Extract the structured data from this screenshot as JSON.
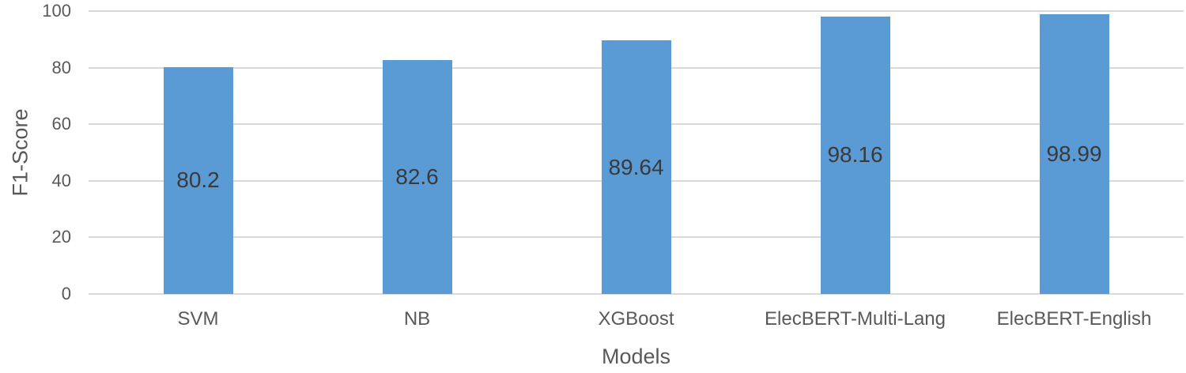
{
  "chart_data": {
    "type": "bar",
    "title": "",
    "categories": [
      "SVM",
      "NB",
      "XGBoost",
      "ElecBERT-Multi-Lang",
      "ElecBERT-English"
    ],
    "values": [
      80.2,
      82.6,
      89.64,
      98.16,
      98.99
    ],
    "value_labels": [
      "80.2",
      "82.6",
      "89.64",
      "98.16",
      "98.99"
    ],
    "xlabel": "Models",
    "ylabel": "F1-Score",
    "ylim": [
      0,
      100
    ],
    "yticks": [
      0,
      20,
      40,
      60,
      80,
      100
    ],
    "grid": "horizontal",
    "legend": "none",
    "bar_color": "#5B9BD5",
    "data_label_color": "#3a3a3a",
    "axis_text_color": "#595959",
    "gridline_color": "#d9d9d9"
  }
}
